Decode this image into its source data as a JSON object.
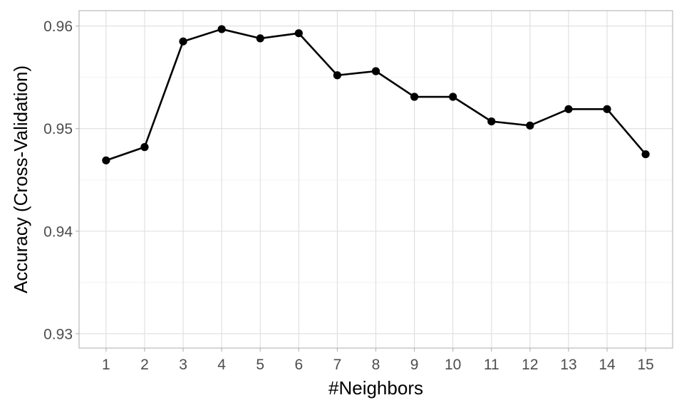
{
  "chart_data": {
    "type": "line",
    "xlabel": "#Neighbors",
    "ylabel": "Accuracy (Cross-Validation)",
    "x": [
      1,
      2,
      3,
      4,
      5,
      6,
      7,
      8,
      9,
      10,
      11,
      12,
      13,
      14,
      15
    ],
    "series": [
      {
        "values": [
          0.9469,
          0.9482,
          0.9585,
          0.9597,
          0.9588,
          0.9593,
          0.9552,
          0.9556,
          0.9531,
          0.9531,
          0.9507,
          0.9503,
          0.9519,
          0.9519,
          0.9475
        ],
        "color": "#000000",
        "markers": "filled-circle"
      }
    ],
    "xticks": [
      "1",
      "2",
      "3",
      "4",
      "5",
      "6",
      "7",
      "8",
      "9",
      "10",
      "11",
      "12",
      "13",
      "14",
      "15"
    ],
    "yticks": [
      "0.93",
      "0.94",
      "0.95",
      "0.96"
    ],
    "ytick_values": [
      0.93,
      0.94,
      0.95,
      0.96
    ],
    "xlim": [
      0.3,
      15.7
    ],
    "ylim": [
      0.9286,
      0.9615
    ],
    "grid": true,
    "theme": "light",
    "colors": {
      "background": "#ffffff",
      "grid": "#dedede",
      "border": "#b3b3b3",
      "tick_text": "#4d4d4d",
      "line": "#000000"
    }
  }
}
